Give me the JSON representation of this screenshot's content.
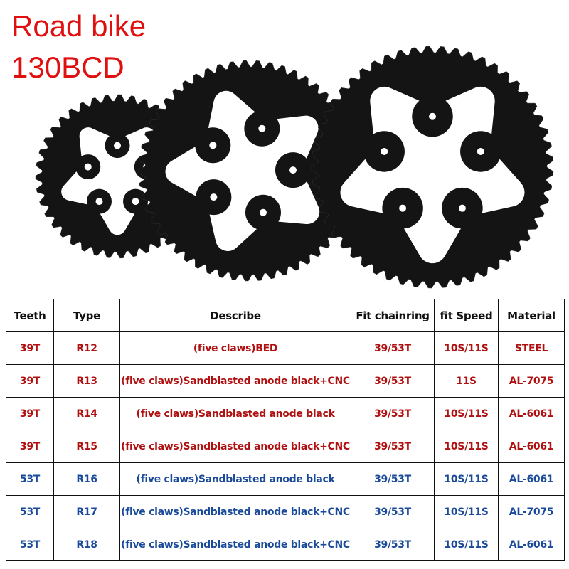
{
  "title_line1": "Road bike",
  "title_line2": "130BCD",
  "colors": {
    "title": "#e01010",
    "red_rows": "#b01010",
    "blue_rows": "#1a4a9a"
  },
  "table": {
    "headers": [
      "Teeth",
      "Type",
      "Describe",
      "Fit chainring",
      "fit Speed",
      "Material"
    ],
    "rows": [
      {
        "color": "red",
        "cells": [
          "39T",
          "R12",
          "(five claws)BED",
          "39/53T",
          "10S/11S",
          "STEEL"
        ]
      },
      {
        "color": "red",
        "cells": [
          "39T",
          "R13",
          "(five claws)Sandblasted anode black+CNC",
          "39/53T",
          "11S",
          "AL-7075"
        ]
      },
      {
        "color": "red",
        "cells": [
          "39T",
          "R14",
          "(five claws)Sandblasted anode black",
          "39/53T",
          "10S/11S",
          "AL-6061"
        ]
      },
      {
        "color": "red",
        "cells": [
          "39T",
          "R15",
          "(five claws)Sandblasted anode black+CNC",
          "39/53T",
          "10S/11S",
          "AL-6061"
        ]
      },
      {
        "color": "blue",
        "cells": [
          "53T",
          "R16",
          "(five claws)Sandblasted anode black",
          "39/53T",
          "10S/11S",
          "AL-6061"
        ]
      },
      {
        "color": "blue",
        "cells": [
          "53T",
          "R17",
          "(five claws)Sandblasted anode black+CNC",
          "39/53T",
          "10S/11S",
          "AL-7075"
        ]
      },
      {
        "color": "blue",
        "cells": [
          "53T",
          "R18",
          "(five claws)Sandblasted anode black+CNC",
          "39/53T",
          "10S/11S",
          "AL-6061"
        ]
      }
    ]
  }
}
